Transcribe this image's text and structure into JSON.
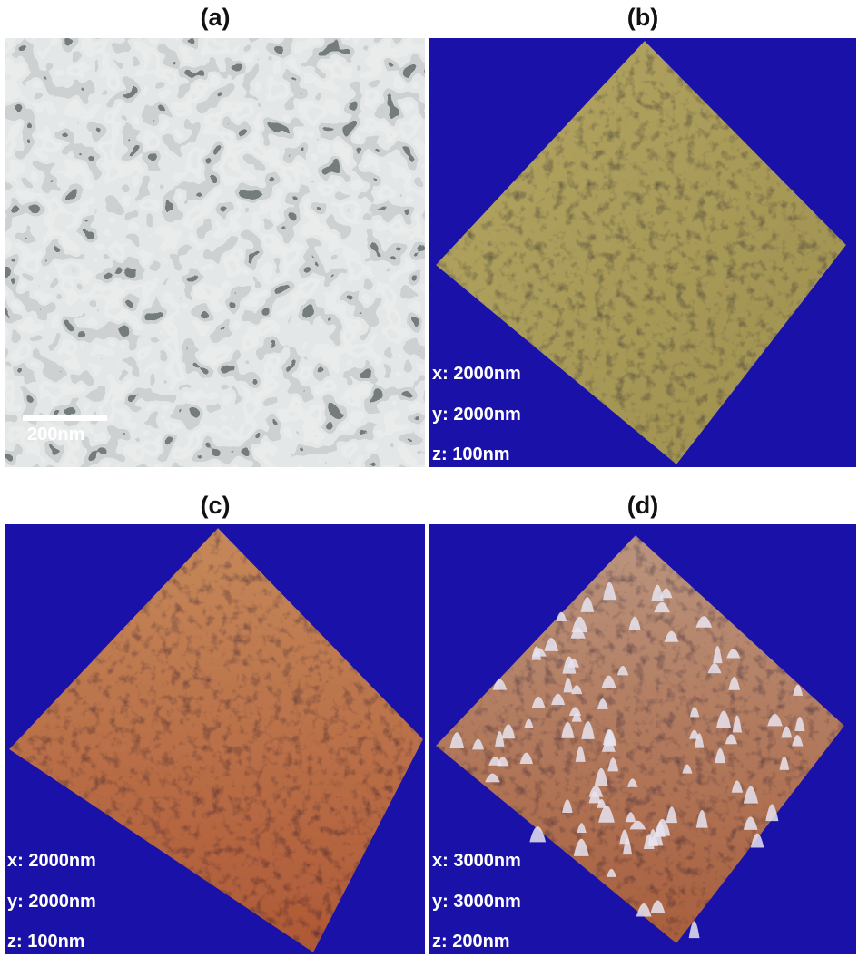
{
  "panels": [
    {
      "label": "(a)",
      "scale_bar": "200nm"
    },
    {
      "label": "(b)",
      "annotations": [
        "x: 2000nm",
        "y: 2000nm",
        "z: 100nm"
      ]
    },
    {
      "label": "(c)",
      "annotations": [
        "x: 2000nm",
        "y: 2000nm",
        "z: 100nm"
      ]
    },
    {
      "label": "(d)",
      "annotations": [
        "x: 3000nm",
        "y: 3000nm",
        "z: 200nm"
      ]
    }
  ]
}
